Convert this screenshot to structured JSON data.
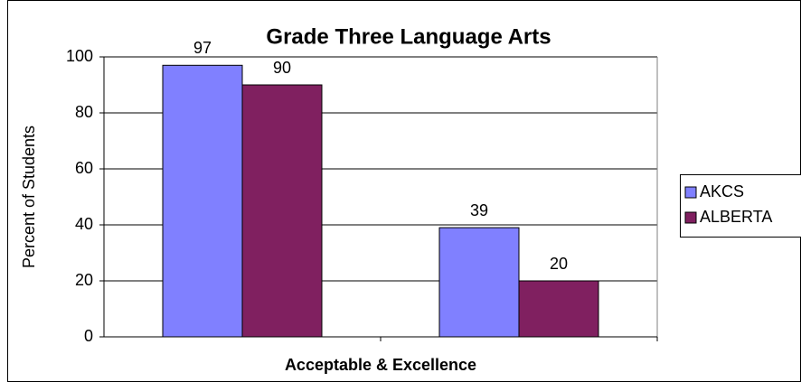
{
  "chart_data": {
    "type": "bar",
    "title": "Grade Three Language Arts",
    "x_label": "Acceptable & Excellence",
    "y_label": "Percent of Students",
    "categories": [
      null,
      null
    ],
    "series": [
      {
        "name": "AKCS",
        "color": "#8080ff",
        "values": [
          97,
          39
        ]
      },
      {
        "name": "ALBERTA",
        "color": "#802060",
        "values": [
          90,
          20
        ]
      }
    ],
    "ylim": [
      0,
      100
    ],
    "yticks": [
      0,
      20,
      40,
      60,
      80,
      100
    ],
    "grid": true,
    "legend": "right"
  }
}
